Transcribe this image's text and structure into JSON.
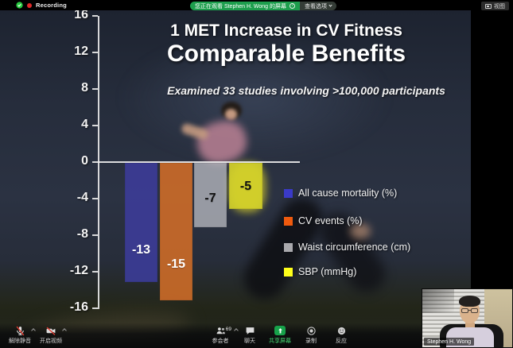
{
  "meeting": {
    "recording_label": "Recording",
    "banner": {
      "watching_text": "您正在观看 Stephen H. Wong 的屏幕",
      "options_label": "查看选项"
    },
    "view_button_label": "视图",
    "toolbar": [
      {
        "id": "unmute",
        "label": "解除静音"
      },
      {
        "id": "start-video",
        "label": "开启视频"
      },
      {
        "id": "participants",
        "label": "参会者",
        "badge": "69"
      },
      {
        "id": "chat",
        "label": "聊天"
      },
      {
        "id": "share-screen",
        "label": "共享屏幕"
      },
      {
        "id": "record",
        "label": "录制"
      },
      {
        "id": "reactions",
        "label": "反应"
      }
    ],
    "participant_video": {
      "name": "Stephen H. Wong"
    }
  },
  "chart_data": {
    "type": "bar",
    "title": "1 MET Increase in CV Fitness",
    "subtitle": "Comparable Benefits",
    "note": "Examined 33 studies involving >100,000 participants",
    "categories": [
      "All cause mortality (%)",
      "CV events (%)",
      "Waist circumference (cm)",
      "SBP (mmHg)"
    ],
    "values": [
      -13,
      -15,
      -7,
      -5
    ],
    "bar_colors": [
      "rgba(60,60,152,0.9)",
      "rgba(205,108,40,0.9)",
      "rgba(188,190,196,0.75)",
      "rgba(213,211,42,0.9)"
    ],
    "value_label_colors": [
      "#ffffff",
      "#ffffff",
      "#111111",
      "#111111"
    ],
    "legend_colors": [
      "#3a3ac8",
      "#ef5a0e",
      "#a9a9ad",
      "#ffff1a"
    ],
    "ylim": [
      -16,
      16
    ],
    "yticks": [
      16,
      12,
      8,
      4,
      0,
      -4,
      -8,
      -12,
      -16
    ],
    "xlabel": "",
    "ylabel": "",
    "grid": false,
    "legend_position": "right-middle"
  }
}
